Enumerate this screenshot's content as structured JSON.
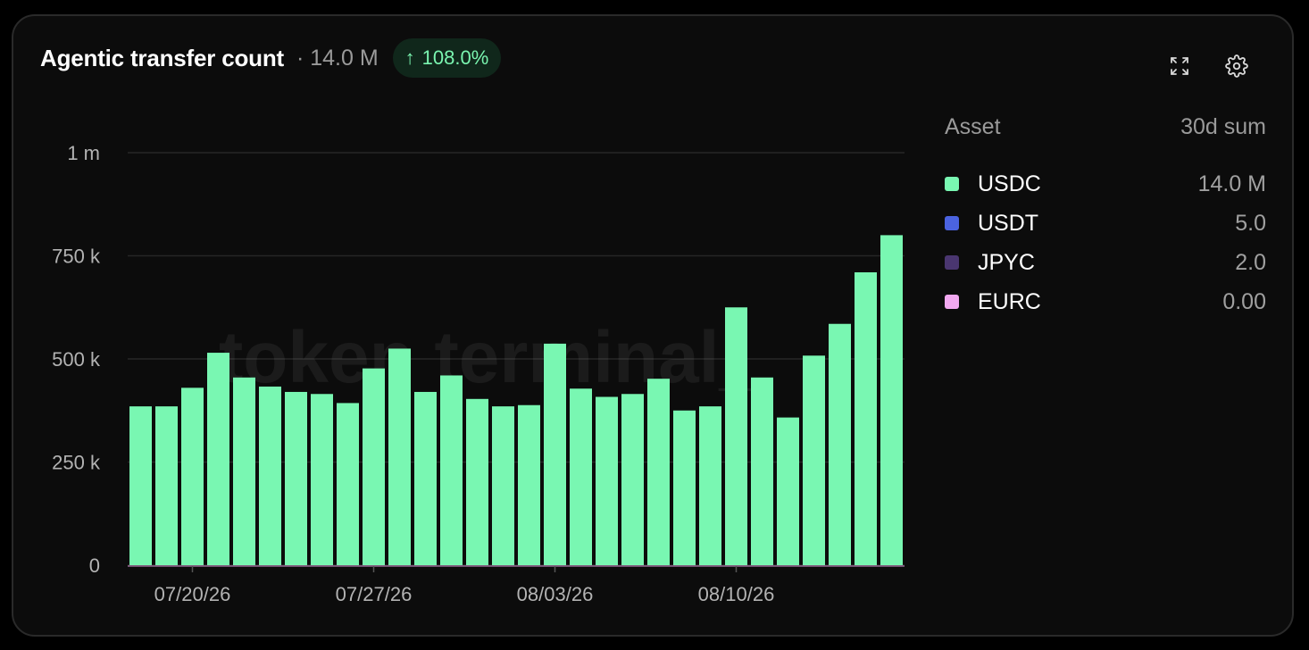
{
  "header": {
    "title": "Agentic transfer count",
    "total": "· 14.0 M",
    "change_arrow": "↑",
    "change": "108.0%"
  },
  "icons": {
    "expand": "expand-icon",
    "settings": "gear-icon"
  },
  "legend": {
    "col_asset": "Asset",
    "col_sum": "30d sum",
    "rows": [
      {
        "name": "USDC",
        "value": "14.0 M",
        "color": "#79f7b2"
      },
      {
        "name": "USDT",
        "value": "5.0",
        "color": "#4b63e0"
      },
      {
        "name": "JPYC",
        "value": "2.0",
        "color": "#4a3670"
      },
      {
        "name": "EURC",
        "value": "0.00",
        "color": "#f2a8f0"
      }
    ]
  },
  "watermark": "token terminal_",
  "chart_data": {
    "type": "bar",
    "title": "Agentic transfer count",
    "ylim": [
      0,
      1000000
    ],
    "yticks": [
      {
        "value": 0,
        "label": "0"
      },
      {
        "value": 250000,
        "label": "250 k"
      },
      {
        "value": 500000,
        "label": "500 k"
      },
      {
        "value": 750000,
        "label": "750 k"
      },
      {
        "value": 1000000,
        "label": "1 m"
      }
    ],
    "xticks": [
      {
        "index": 2,
        "label": "07/20/26"
      },
      {
        "index": 9,
        "label": "07/27/26"
      },
      {
        "index": 16,
        "label": "08/03/26"
      },
      {
        "index": 23,
        "label": "08/10/26"
      }
    ],
    "series": [
      {
        "name": "USDC",
        "color": "#79f7b2",
        "values": [
          385000,
          385000,
          430000,
          515000,
          455000,
          433000,
          420000,
          415000,
          393000,
          477000,
          525000,
          420000,
          460000,
          403000,
          385000,
          388000,
          537000,
          428000,
          408000,
          415000,
          452000,
          375000,
          385000,
          625000,
          455000,
          358000,
          508000,
          585000,
          710000,
          800000
        ]
      }
    ],
    "grid": true
  }
}
